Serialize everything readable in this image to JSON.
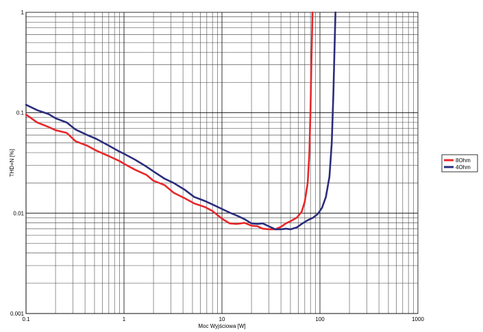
{
  "chart_data": {
    "type": "line",
    "xlabel": "Moc Wyjściowa [W]",
    "ylabel": "THD+N [%]",
    "xscale": "log",
    "yscale": "log",
    "xlim": [
      0.1,
      1000
    ],
    "ylim": [
      0.001,
      1
    ],
    "grid": true,
    "legend_position": "right",
    "x_ticks": [
      {
        "value": 0.1,
        "label": "0.1"
      },
      {
        "value": 1,
        "label": "1"
      },
      {
        "value": 10,
        "label": "10"
      },
      {
        "value": 100,
        "label": "100"
      },
      {
        "value": 1000,
        "label": "1000"
      }
    ],
    "y_ticks": [
      {
        "value": 1,
        "label": "1"
      },
      {
        "value": 0.1,
        "label": "0.1"
      },
      {
        "value": 0.01,
        "label": "0.01"
      },
      {
        "value": 0.001,
        "label": "0.001"
      }
    ],
    "series": [
      {
        "name": "8Ohm",
        "color": "#e8272a",
        "x": [
          0.1,
          0.13,
          0.17,
          0.2,
          0.26,
          0.32,
          0.42,
          0.52,
          0.7,
          0.9,
          1.0,
          1.3,
          1.7,
          2.0,
          2.6,
          3.2,
          4.2,
          5.2,
          6.7,
          8.0,
          10.0,
          12.0,
          14.0,
          17.0,
          20.0,
          23.0,
          26.0,
          30.0,
          35.0,
          40.0,
          45.0,
          50.0,
          58.0,
          65.0,
          70.0,
          75.0,
          78.0,
          80.0,
          82.0,
          84.0
        ],
        "y": [
          0.096,
          0.08,
          0.072,
          0.067,
          0.063,
          0.052,
          0.047,
          0.042,
          0.037,
          0.033,
          0.031,
          0.027,
          0.024,
          0.021,
          0.019,
          0.016,
          0.014,
          0.0125,
          0.0115,
          0.0105,
          0.0088,
          0.0079,
          0.0078,
          0.008,
          0.0075,
          0.0074,
          0.007,
          0.0069,
          0.0069,
          0.0073,
          0.0079,
          0.0083,
          0.009,
          0.0103,
          0.013,
          0.02,
          0.04,
          0.1,
          0.35,
          1.0
        ]
      },
      {
        "name": "4Ohm",
        "color": "#2a2c7c",
        "x": [
          0.1,
          0.13,
          0.17,
          0.2,
          0.26,
          0.32,
          0.42,
          0.52,
          0.7,
          0.9,
          1.0,
          1.3,
          1.7,
          2.0,
          2.6,
          3.2,
          4.2,
          5.2,
          6.7,
          8.0,
          10.0,
          12.0,
          14.0,
          17.0,
          20.0,
          23.0,
          26.0,
          30.0,
          35.0,
          40.0,
          45.0,
          50.0,
          58.0,
          65.0,
          75.0,
          85.0,
          95.0,
          105.0,
          115.0,
          125.0,
          132.0,
          137.0,
          141.0,
          144.0
        ],
        "y": [
          0.12,
          0.106,
          0.097,
          0.088,
          0.08,
          0.068,
          0.06,
          0.055,
          0.047,
          0.041,
          0.039,
          0.034,
          0.029,
          0.026,
          0.022,
          0.02,
          0.017,
          0.0145,
          0.0132,
          0.0122,
          0.011,
          0.0101,
          0.0095,
          0.0087,
          0.0079,
          0.0078,
          0.0079,
          0.0074,
          0.0069,
          0.0069,
          0.007,
          0.0069,
          0.0072,
          0.0078,
          0.0085,
          0.009,
          0.0098,
          0.0113,
          0.0145,
          0.023,
          0.05,
          0.15,
          0.45,
          1.0
        ]
      }
    ]
  }
}
